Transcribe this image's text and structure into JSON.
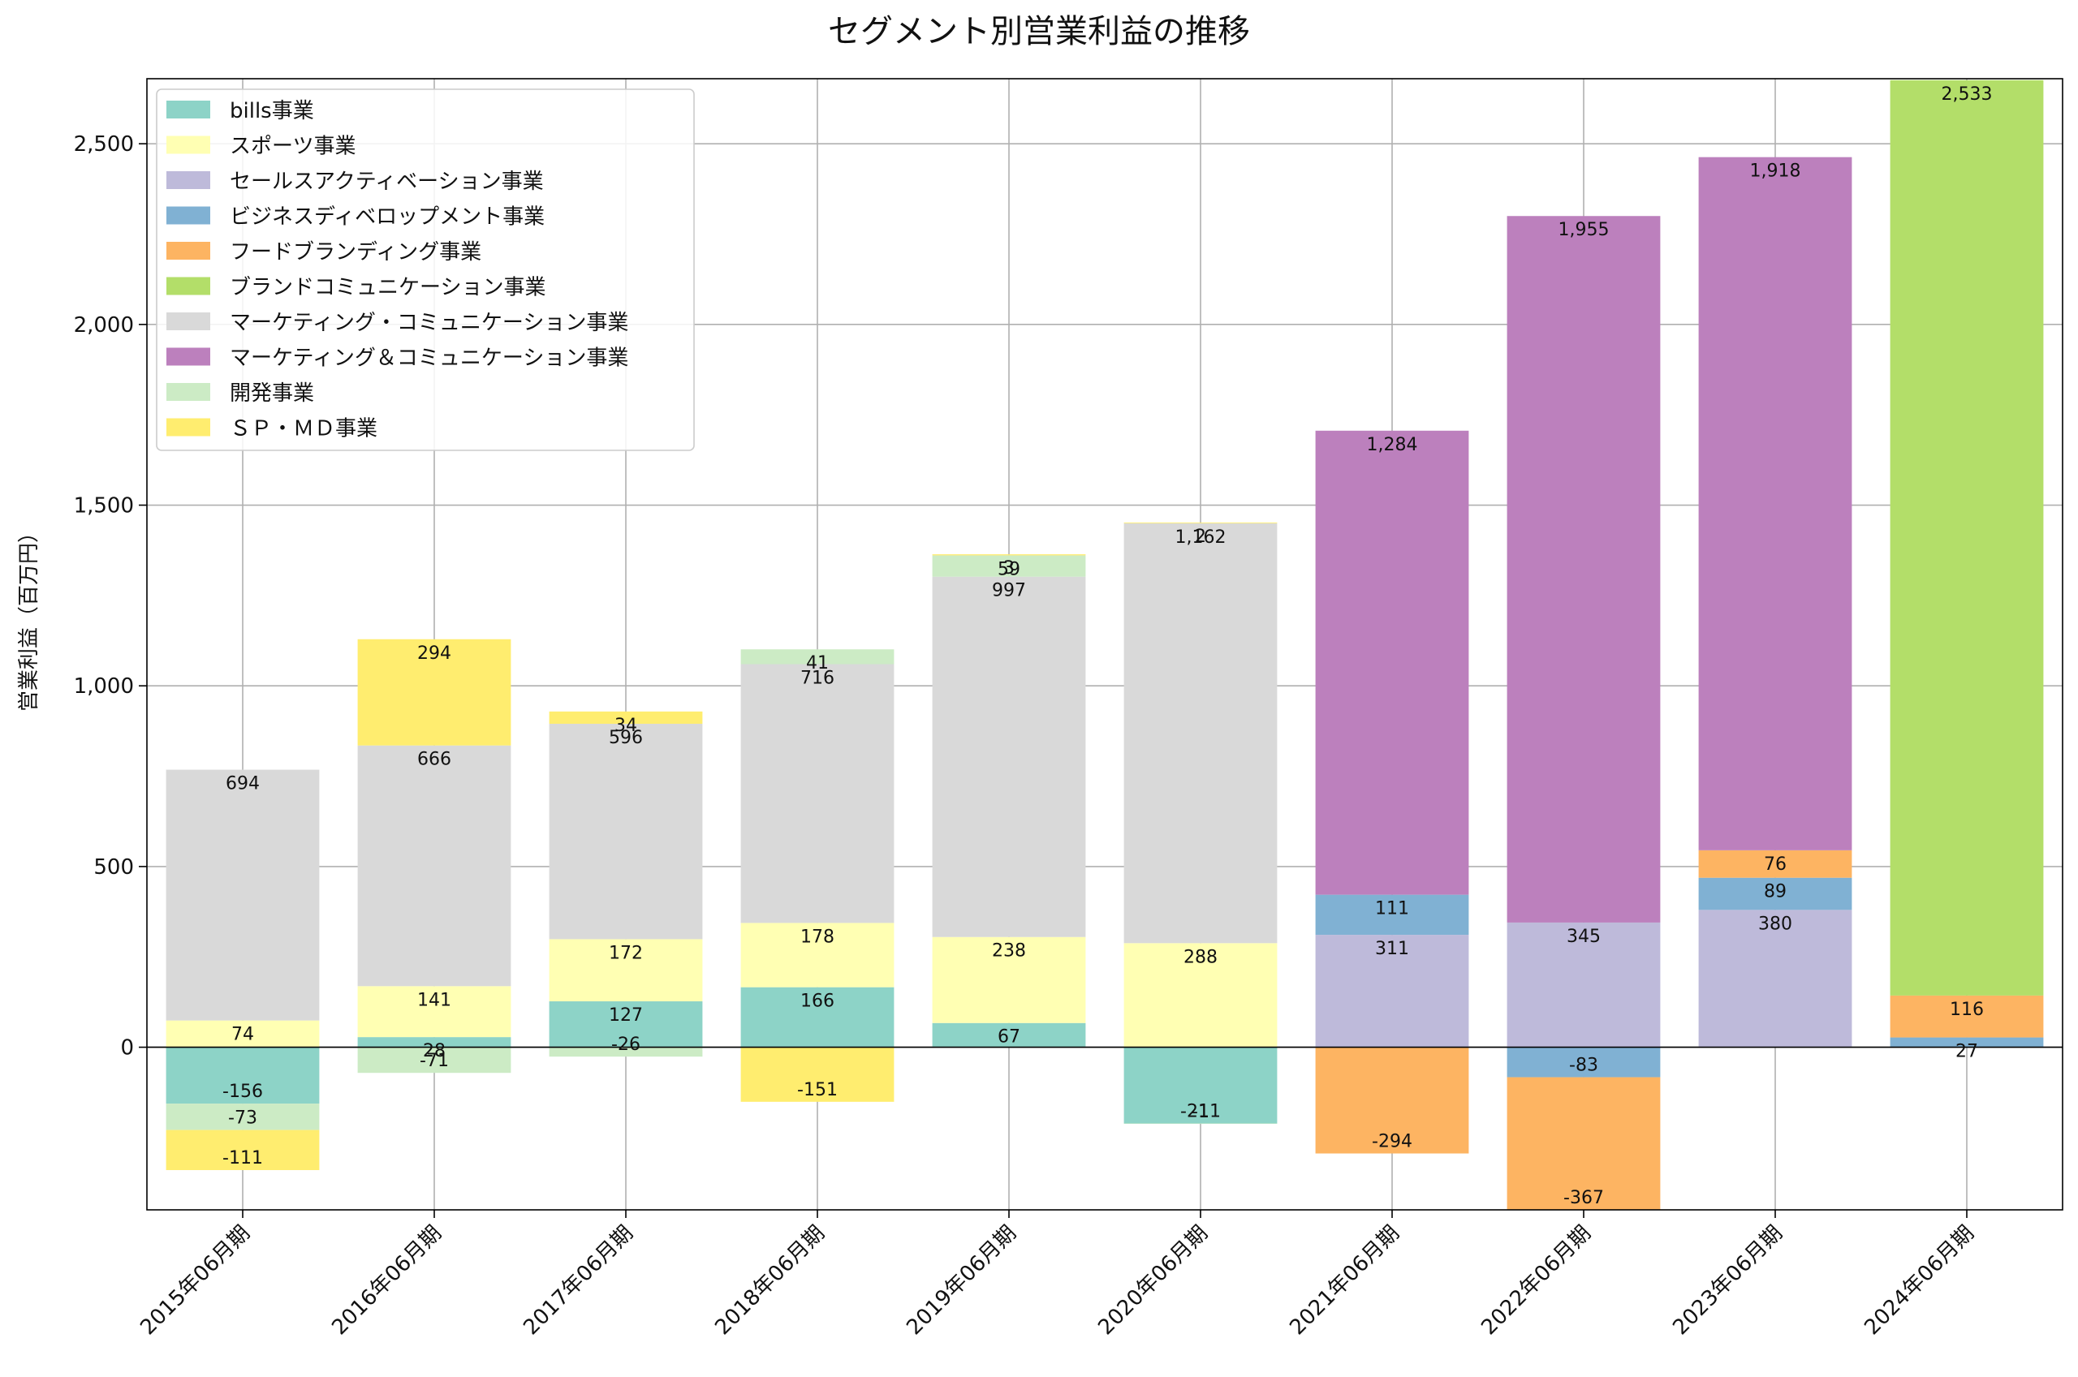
{
  "chart_data": {
    "type": "bar",
    "stacked": true,
    "title": "セグメント別営業利益の推移",
    "xlabel": "",
    "ylabel": "営業利益（百万円）",
    "ylim": [
      -450,
      2680
    ],
    "yticks": [
      0,
      500,
      1000,
      1500,
      2000,
      2500
    ],
    "ytick_labels": [
      "0",
      "500",
      "1,000",
      "1,500",
      "2,000",
      "2,500"
    ],
    "grid": true,
    "legend_position": "top-left",
    "categories": [
      "2015年06月期",
      "2016年06月期",
      "2017年06月期",
      "2018年06月期",
      "2019年06月期",
      "2020年06月期",
      "2021年06月期",
      "2022年06月期",
      "2023年06月期",
      "2024年06月期"
    ],
    "series": [
      {
        "name": "bills事業",
        "color": "#8dd3c7",
        "values": [
          -156,
          28,
          127,
          166,
          67,
          -211,
          null,
          null,
          null,
          null
        ]
      },
      {
        "name": "スポーツ事業",
        "color": "#ffffb3",
        "values": [
          74,
          141,
          172,
          178,
          238,
          288,
          null,
          null,
          null,
          null
        ]
      },
      {
        "name": "セールスアクティベーション事業",
        "color": "#bebada",
        "values": [
          null,
          null,
          null,
          null,
          null,
          null,
          311,
          345,
          380,
          null
        ]
      },
      {
        "name": "ビジネスディベロップメント事業",
        "color": "#80b1d3",
        "values": [
          null,
          null,
          null,
          null,
          null,
          null,
          111,
          -83,
          89,
          27
        ]
      },
      {
        "name": "フードブランディング事業",
        "color": "#fdb462",
        "values": [
          null,
          null,
          null,
          null,
          null,
          null,
          -294,
          -367,
          76,
          116
        ]
      },
      {
        "name": "ブランドコミュニケーション事業",
        "color": "#b3de69",
        "values": [
          null,
          null,
          null,
          null,
          null,
          null,
          null,
          null,
          null,
          2533
        ]
      },
      {
        "name": "マーケティング・コミュニケーション事業",
        "color": "#d9d9d9",
        "values": [
          694,
          666,
          596,
          716,
          997,
          1162,
          null,
          null,
          null,
          null
        ]
      },
      {
        "name": "マーケティング＆コミュニケーション事業",
        "color": "#bc80bd",
        "values": [
          null,
          null,
          null,
          null,
          null,
          null,
          1284,
          1955,
          1918,
          null
        ]
      },
      {
        "name": "開発事業",
        "color": "#ccebc5",
        "values": [
          -73,
          -71,
          -26,
          41,
          59,
          -1,
          null,
          null,
          null,
          null
        ]
      },
      {
        "name": "ＳＰ・ＭＤ事業",
        "color": "#ffed6f",
        "values": [
          -111,
          294,
          34,
          -151,
          3,
          2,
          null,
          null,
          null,
          null
        ]
      }
    ]
  }
}
